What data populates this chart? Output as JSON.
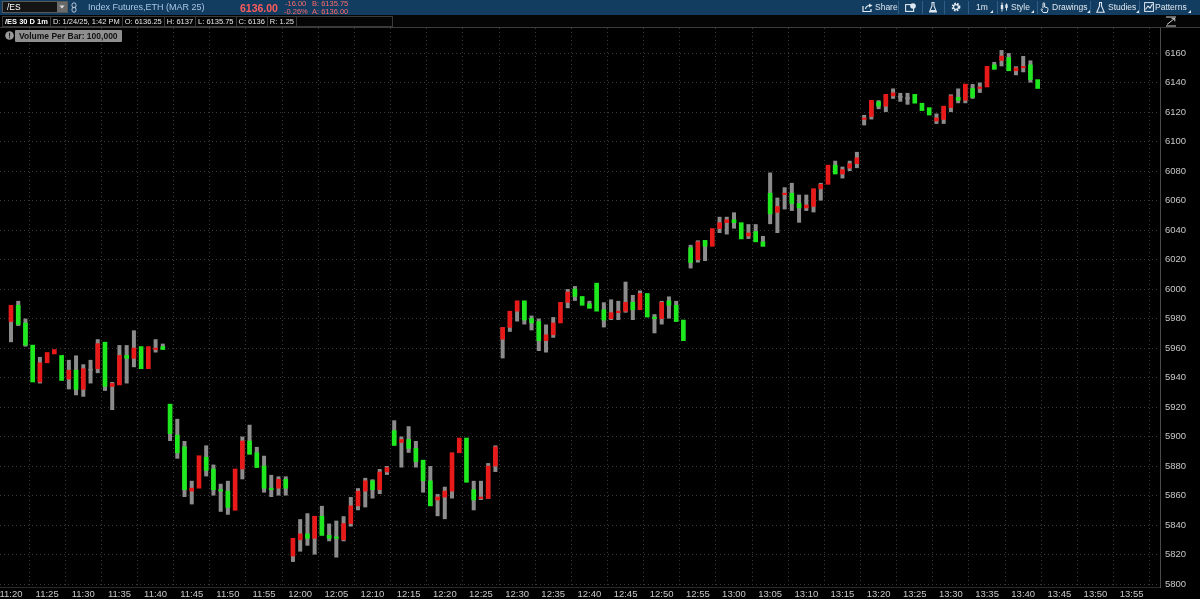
{
  "chart_data": {
    "type": "candlestick",
    "title": "/ES 30 D 1m",
    "annotations": [
      "/ES",
      "Index Futures,ETH (MAR 25)",
      "6136.00",
      "-16.00",
      "-0.26%",
      "B: 6135.75",
      "A: 6136.00",
      "D: 1/24/25, 1:42 PM",
      "O: 6136.25",
      "H: 6137",
      "L: 6135.75",
      "C: 6136",
      "R: 1.25",
      "Volume Per Bar: 100,000",
      "Share",
      "1m",
      "Style",
      "Drawings",
      "Studies",
      "Patterns"
    ],
    "x": [
      11.3333,
      11.35,
      11.3667,
      11.3833,
      11.4,
      11.4167,
      11.4333,
      11.45,
      11.4667,
      11.4833,
      11.5,
      11.5167,
      11.5333,
      11.55,
      11.5667,
      11.5833,
      11.6,
      11.6167,
      11.6333,
      11.65,
      11.6667,
      11.6833,
      11.7,
      11.7167,
      11.7333,
      11.75,
      11.7667,
      11.7833,
      11.8,
      11.8167,
      11.8333,
      11.85,
      11.8667,
      11.8833,
      11.9,
      11.9167,
      11.9333,
      11.95,
      11.9667,
      11.9833,
      12,
      12.0167,
      12.0333,
      12.05,
      12.0667,
      12.0833,
      12.1,
      12.1167,
      12.1333,
      12.15,
      12.1667,
      12.1833,
      12.2,
      12.2167,
      12.2333,
      12.25,
      12.2667,
      12.2833,
      12.3,
      12.3167,
      12.3333,
      12.35,
      12.3667,
      12.3833,
      12.4,
      12.4167,
      12.4333,
      12.45,
      12.4667,
      12.4833,
      12.5,
      12.5167,
      12.5333,
      12.55,
      12.5667,
      12.5833,
      12.6,
      12.6167,
      12.6333,
      12.65,
      12.6667,
      12.6833,
      12.7,
      12.7167,
      12.7333,
      12.75,
      12.7667,
      12.7833,
      12.8,
      12.8167,
      12.8333,
      12.85,
      12.8667,
      12.8833,
      12.9,
      12.9167,
      12.9333,
      12.95,
      12.9667,
      12.9833,
      13,
      13.0167,
      13.0333,
      13.05,
      13.0667,
      13.0833,
      13.1,
      13.1167,
      13.1333,
      13.15,
      13.1667,
      13.1833,
      13.2,
      13.2167,
      13.2333,
      13.25,
      13.2667,
      13.2833,
      13.3,
      13.3167,
      13.3333,
      13.35,
      13.3667,
      13.3833,
      13.4,
      13.4167,
      13.4333,
      13.45,
      13.4667,
      13.4833,
      13.5,
      13.5167,
      13.5333,
      13.55,
      13.5667,
      13.5833,
      13.6,
      13.6167,
      13.6333,
      13.65,
      13.6667,
      13.6833,
      13.7
    ],
    "ohlc": [
      [
        5989,
        5989,
        5964,
        5978
      ],
      [
        5976,
        5992,
        5975,
        5989
      ],
      [
        5962,
        5980,
        5961,
        5977
      ],
      [
        5937,
        5962,
        5937,
        5962
      ],
      [
        5950,
        5954,
        5936,
        5937
      ],
      [
        5957,
        5957,
        5950,
        5950
      ],
      [
        5959,
        5960,
        5956,
        5956
      ],
      [
        5938,
        5955,
        5938,
        5955
      ],
      [
        5945,
        5952,
        5932,
        5939
      ],
      [
        5932,
        5955,
        5928,
        5945
      ],
      [
        5946,
        5949,
        5927,
        5932
      ],
      [
        5945,
        5952,
        5936,
        5945
      ],
      [
        5963,
        5966,
        5943,
        5946
      ],
      [
        5934,
        5964,
        5931,
        5964
      ],
      [
        5936,
        5937,
        5918,
        5934
      ],
      [
        5955,
        5962,
        5935,
        5935
      ],
      [
        5953,
        5962,
        5936,
        5955
      ],
      [
        5960,
        5972,
        5947,
        5953
      ],
      [
        5946,
        5961,
        5946,
        5961
      ],
      [
        5961,
        5962,
        5946,
        5946
      ],
      [
        5960,
        5966,
        5957,
        5959
      ],
      [
        5959,
        5963,
        5959,
        5961
      ],
      [
        5902,
        5922,
        5897,
        5922
      ],
      [
        5889,
        5912,
        5885,
        5901
      ],
      [
        5864,
        5897,
        5859,
        5893
      ],
      [
        5865,
        5870,
        5854,
        5863
      ],
      [
        5887,
        5887,
        5865,
        5865
      ],
      [
        5877,
        5894,
        5873,
        5886
      ],
      [
        5864,
        5881,
        5860,
        5878
      ],
      [
        5863,
        5868,
        5849,
        5864
      ],
      [
        5852,
        5870,
        5847,
        5863
      ],
      [
        5878,
        5878,
        5850,
        5850
      ],
      [
        5897,
        5900,
        5871,
        5878
      ],
      [
        5888,
        5908,
        5888,
        5897
      ],
      [
        5879,
        5893,
        5879,
        5889
      ],
      [
        5865,
        5887,
        5862,
        5880
      ],
      [
        5864,
        5874,
        5859,
        5865
      ],
      [
        5871,
        5873,
        5860,
        5865
      ],
      [
        5865,
        5873,
        5860,
        5871
      ],
      [
        5831,
        5831,
        5815,
        5819
      ],
      [
        5834,
        5844,
        5822,
        5830
      ],
      [
        5831,
        5848,
        5826,
        5834
      ],
      [
        5846,
        5846,
        5820,
        5831
      ],
      [
        5833,
        5853,
        5833,
        5846
      ],
      [
        5831,
        5841,
        5829,
        5833
      ],
      [
        5831,
        5843,
        5818,
        5832
      ],
      [
        5841,
        5846,
        5829,
        5830
      ],
      [
        5853,
        5859,
        5839,
        5841
      ],
      [
        5863,
        5865,
        5850,
        5853
      ],
      [
        5870,
        5872,
        5852,
        5863
      ],
      [
        5864,
        5871,
        5858,
        5870
      ],
      [
        5876,
        5878,
        5861,
        5864
      ],
      [
        5879,
        5880,
        5874,
        5876
      ],
      [
        5894,
        5911,
        5894,
        5904
      ],
      [
        5898,
        5900,
        5879,
        5896
      ],
      [
        5892,
        5907,
        5889,
        5898
      ],
      [
        5883,
        5897,
        5879,
        5892
      ],
      [
        5870,
        5884,
        5862,
        5884
      ],
      [
        5853,
        5880,
        5853,
        5870
      ],
      [
        5859,
        5861,
        5846,
        5857
      ],
      [
        5863,
        5866,
        5844,
        5859
      ],
      [
        5889,
        5889,
        5858,
        5863
      ],
      [
        5899,
        5899,
        5889,
        5889
      ],
      [
        5869,
        5900,
        5869,
        5899
      ],
      [
        5857,
        5870,
        5850,
        5864
      ],
      [
        5859,
        5870,
        5857,
        5858
      ],
      [
        5880,
        5882,
        5858,
        5858
      ],
      [
        5893,
        5894,
        5876,
        5880
      ],
      [
        5974,
        5974,
        5953,
        5966
      ],
      [
        5985,
        5985,
        5971,
        5974
      ],
      [
        5992,
        5992,
        5978,
        5985
      ],
      [
        5979,
        5992,
        5976,
        5992
      ],
      [
        5977,
        5982,
        5972,
        5980
      ],
      [
        5965,
        5980,
        5958,
        5978
      ],
      [
        5969,
        5976,
        5957,
        5965
      ],
      [
        5977,
        5981,
        5967,
        5969
      ],
      [
        5991,
        5991,
        5977,
        5977
      ],
      [
        5998,
        6000,
        5987,
        5991
      ],
      [
        5995,
        6002,
        5992,
        6000
      ],
      [
        5989,
        5995,
        5989,
        5995
      ],
      [
        5987,
        5992,
        5987,
        5990
      ],
      [
        5985,
        6004,
        5985,
        6004
      ],
      [
        5979,
        5991,
        5974,
        5986
      ],
      [
        5984,
        5993,
        5979,
        5980
      ],
      [
        5985,
        5992,
        5979,
        5984
      ],
      [
        5991,
        6005,
        5984,
        5985
      ],
      [
        5986,
        5996,
        5979,
        5991
      ],
      [
        5997,
        5999,
        5986,
        5986
      ],
      [
        5981,
        5997,
        5980,
        5997
      ],
      [
        5980,
        5983,
        5970,
        5981
      ],
      [
        5991,
        5992,
        5976,
        5980
      ],
      [
        5989,
        5995,
        5980,
        5992
      ],
      [
        5978,
        5992,
        5978,
        5989
      ],
      [
        5965,
        5979,
        5965,
        5979
      ],
      [
        6018,
        6030,
        6014,
        6028
      ],
      [
        6032,
        6033,
        6018,
        6020
      ],
      [
        6029,
        6033,
        6019,
        6033
      ],
      [
        6041,
        6041,
        6029,
        6029
      ],
      [
        6045,
        6049,
        6038,
        6041
      ],
      [
        6047,
        6049,
        6037,
        6045
      ],
      [
        6045,
        6052,
        6041,
        6047
      ],
      [
        6034,
        6046,
        6034,
        6045
      ],
      [
        6038,
        6044,
        6034,
        6036
      ],
      [
        6032,
        6044,
        6032,
        6039
      ],
      [
        6029,
        6036,
        6029,
        6032
      ],
      [
        6051,
        6079,
        6044,
        6065
      ],
      [
        6056,
        6062,
        6038,
        6052
      ],
      [
        6065,
        6069,
        6054,
        6064
      ],
      [
        6058,
        6072,
        6053,
        6065
      ],
      [
        6055,
        6064,
        6045,
        6058
      ],
      [
        6057,
        6064,
        6053,
        6055
      ],
      [
        6068,
        6068,
        6052,
        6056
      ],
      [
        6071,
        6072,
        6060,
        6068
      ],
      [
        6084,
        6084,
        6070,
        6071
      ],
      [
        6078,
        6087,
        6078,
        6084
      ],
      [
        6081,
        6083,
        6075,
        6078
      ],
      [
        6085,
        6087,
        6080,
        6082
      ],
      [
        6089,
        6093,
        6082,
        6085
      ],
      [
        6116,
        6118,
        6111,
        6115
      ],
      [
        6128,
        6128,
        6115,
        6117
      ],
      [
        6124,
        6128,
        6122,
        6127
      ],
      [
        6132,
        6132,
        6120,
        6124
      ],
      [
        6133,
        6136,
        6129,
        6131
      ],
      [
        6130,
        6133,
        6127,
        6130
      ],
      [
        6129,
        6133,
        6125,
        6129
      ],
      [
        6126,
        6133,
        6126,
        6132
      ],
      [
        6121,
        6127,
        6120,
        6126
      ],
      [
        6118,
        6124,
        6118,
        6123
      ],
      [
        6116,
        6119,
        6112,
        6114
      ],
      [
        6124,
        6124,
        6112,
        6115
      ],
      [
        6131,
        6132,
        6120,
        6123
      ],
      [
        6128,
        6136,
        6126,
        6130
      ],
      [
        6139,
        6139,
        6126,
        6128
      ],
      [
        6130,
        6139,
        6129,
        6136
      ],
      [
        6137,
        6140,
        6133,
        6136
      ],
      [
        6151,
        6151,
        6137,
        6137
      ],
      [
        6149,
        6154,
        6149,
        6152
      ],
      [
        6158,
        6162,
        6151,
        6155
      ],
      [
        6148,
        6160,
        6148,
        6157
      ],
      [
        6150,
        6151,
        6145,
        6148
      ],
      [
        6151,
        6158,
        6147,
        6150
      ],
      [
        6142,
        6155,
        6140,
        6152
      ],
      [
        6136,
        6143,
        6136,
        6142
      ]
    ],
    "colors": [
      "#e81919",
      "#1ee81e",
      "#1ee81e",
      "#1ee81e",
      "#e81919",
      "#e81919",
      "#e81919",
      "#1ee81e",
      "#e81919",
      "#1ee81e",
      "#e81919",
      "#8c8c8c",
      "#e81919",
      "#1ee81e",
      "#e81919",
      "#e81919",
      "#1ee81e",
      "#e81919",
      "#1ee81e",
      "#e81919",
      "#e81919",
      "#1ee81e",
      "#1ee81e",
      "#1ee81e",
      "#1ee81e",
      "#e81919",
      "#e81919",
      "#1ee81e",
      "#1ee81e",
      "#1ee81e",
      "#1ee81e",
      "#e81919",
      "#e81919",
      "#1ee81e",
      "#1ee81e",
      "#1ee81e",
      "#1ee81e",
      "#e81919",
      "#1ee81e",
      "#e81919",
      "#e81919",
      "#1ee81e",
      "#e81919",
      "#1ee81e",
      "#1ee81e",
      "#1ee81e",
      "#e81919",
      "#e81919",
      "#e81919",
      "#e81919",
      "#1ee81e",
      "#e81919",
      "#e81919",
      "#1ee81e",
      "#e81919",
      "#1ee81e",
      "#1ee81e",
      "#1ee81e",
      "#1ee81e",
      "#e81919",
      "#e81919",
      "#e81919",
      "#e81919",
      "#1ee81e",
      "#1ee81e",
      "#e81919",
      "#e81919",
      "#e81919",
      "#e81919",
      "#e81919",
      "#e81919",
      "#1ee81e",
      "#1ee81e",
      "#1ee81e",
      "#e81919",
      "#e81919",
      "#e81919",
      "#e81919",
      "#1ee81e",
      "#1ee81e",
      "#1ee81e",
      "#1ee81e",
      "#1ee81e",
      "#e81919",
      "#e81919",
      "#e81919",
      "#1ee81e",
      "#e81919",
      "#1ee81e",
      "#1ee81e",
      "#e81919",
      "#1ee81e",
      "#1ee81e",
      "#1ee81e",
      "#1ee81e",
      "#e81919",
      "#1ee81e",
      "#e81919",
      "#e81919",
      "#e81919",
      "#1ee81e",
      "#1ee81e",
      "#e81919",
      "#1ee81e",
      "#1ee81e",
      "#1ee81e",
      "#e81919",
      "#e81919",
      "#1ee81e",
      "#1ee81e",
      "#e81919",
      "#e81919",
      "#e81919",
      "#e81919",
      "#1ee81e",
      "#e81919",
      "#e81919",
      "#e81919",
      "#e81919",
      "#e81919",
      "#1ee81e",
      "#e81919",
      "#e81919",
      "#8c8c8c",
      "#8c8c8c",
      "#1ee81e",
      "#1ee81e",
      "#1ee81e",
      "#e81919",
      "#e81919",
      "#e81919",
      "#1ee81e",
      "#e81919",
      "#1ee81e",
      "#e81919",
      "#e81919",
      "#1ee81e",
      "#e81919",
      "#1ee81e",
      "#e81919",
      "#e81919",
      "#1ee81e",
      "#1ee81e"
    ],
    "color": "#8c8c8c",
    "xlim": [
      11.308,
      13.982
    ],
    "xticks": [
      {
        "value": 11.3333,
        "label": "11:20"
      },
      {
        "value": 11.4167,
        "label": "11:25"
      },
      {
        "value": 11.5,
        "label": "11:30"
      },
      {
        "value": 11.5833,
        "label": "11:35"
      },
      {
        "value": 11.6667,
        "label": "11:40"
      },
      {
        "value": 11.75,
        "label": "11:45"
      },
      {
        "value": 11.8333,
        "label": "11:50"
      },
      {
        "value": 11.9167,
        "label": "11:55"
      },
      {
        "value": 12,
        "label": "12:00"
      },
      {
        "value": 12.0833,
        "label": "12:05"
      },
      {
        "value": 12.1667,
        "label": "12:10"
      },
      {
        "value": 12.25,
        "label": "12:15"
      },
      {
        "value": 12.3333,
        "label": "12:20"
      },
      {
        "value": 12.4167,
        "label": "12:25"
      },
      {
        "value": 12.5,
        "label": "12:30"
      },
      {
        "value": 12.5833,
        "label": "12:35"
      },
      {
        "value": 12.6667,
        "label": "12:40"
      },
      {
        "value": 12.75,
        "label": "12:45"
      },
      {
        "value": 12.8333,
        "label": "12:50"
      },
      {
        "value": 12.9167,
        "label": "12:55"
      },
      {
        "value": 13,
        "label": "13:00"
      },
      {
        "value": 13.0833,
        "label": "13:05"
      },
      {
        "value": 13.1667,
        "label": "13:10"
      },
      {
        "value": 13.25,
        "label": "13:15"
      },
      {
        "value": 13.3333,
        "label": "13:20"
      },
      {
        "value": 13.4167,
        "label": "13:25"
      },
      {
        "value": 13.5,
        "label": "13:30"
      },
      {
        "value": 13.5833,
        "label": "13:35"
      },
      {
        "value": 13.6667,
        "label": "13:40"
      },
      {
        "value": 13.75,
        "label": "13:45"
      },
      {
        "value": 13.8333,
        "label": "13:50"
      },
      {
        "value": 13.9167,
        "label": "13:55"
      }
    ],
    "ylim": [
      5798,
      6177
    ],
    "yticks": [
      5800,
      5820,
      5840,
      5860,
      5880,
      5900,
      5920,
      5940,
      5960,
      5980,
      6000,
      6020,
      6040,
      6060,
      6080,
      6100,
      6120,
      6140,
      6160
    ],
    "grid": true
  }
}
